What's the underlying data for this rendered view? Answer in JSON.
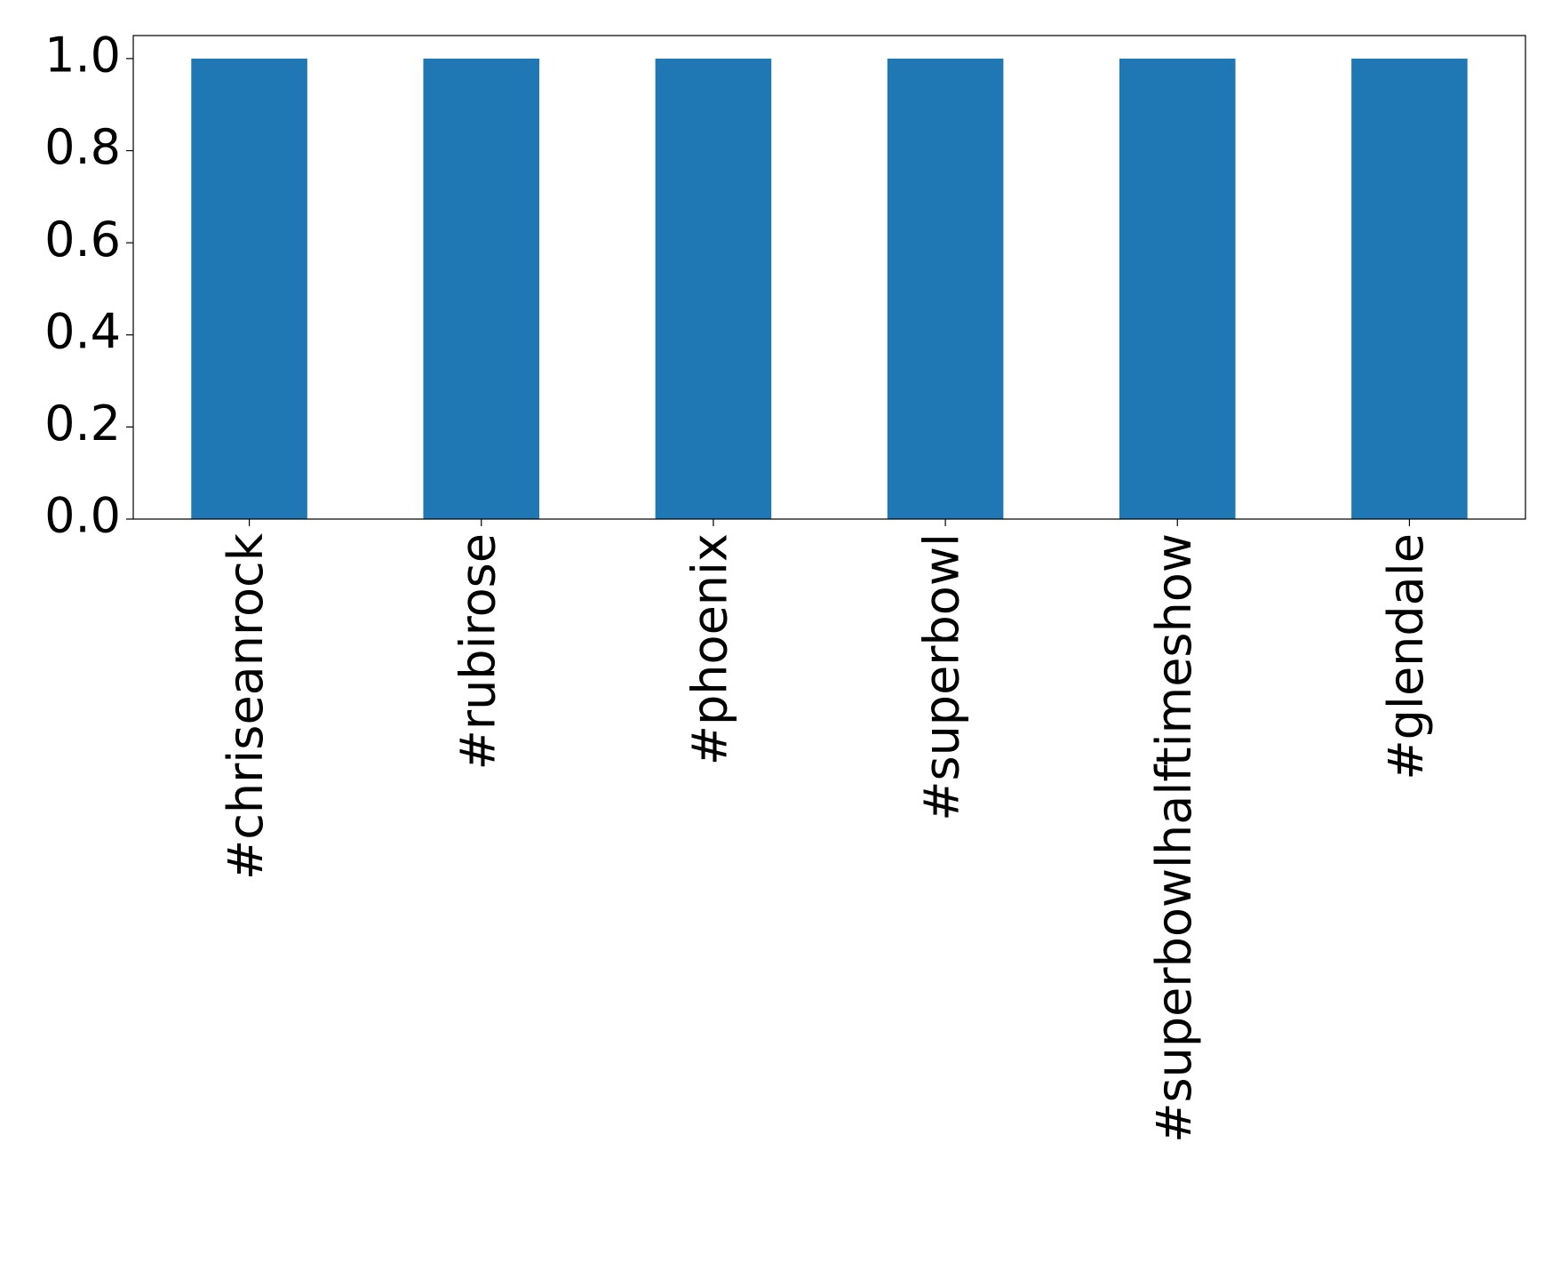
{
  "chart_data": {
    "type": "bar",
    "categories": [
      "#chriseanrock",
      "#rubirose",
      "#phoenix",
      "#superbowl",
      "#superbowlhalftimeshow",
      "#glendale"
    ],
    "values": [
      1,
      1,
      1,
      1,
      1,
      1
    ],
    "color": "#1f77b4",
    "ylim": [
      0,
      1.05
    ],
    "yticks": [
      {
        "value": 0,
        "label": "0.0"
      },
      0.2,
      0.4,
      0.6,
      0.8,
      {
        "value": 1,
        "label": "1.0"
      }
    ],
    "grid": false
  }
}
